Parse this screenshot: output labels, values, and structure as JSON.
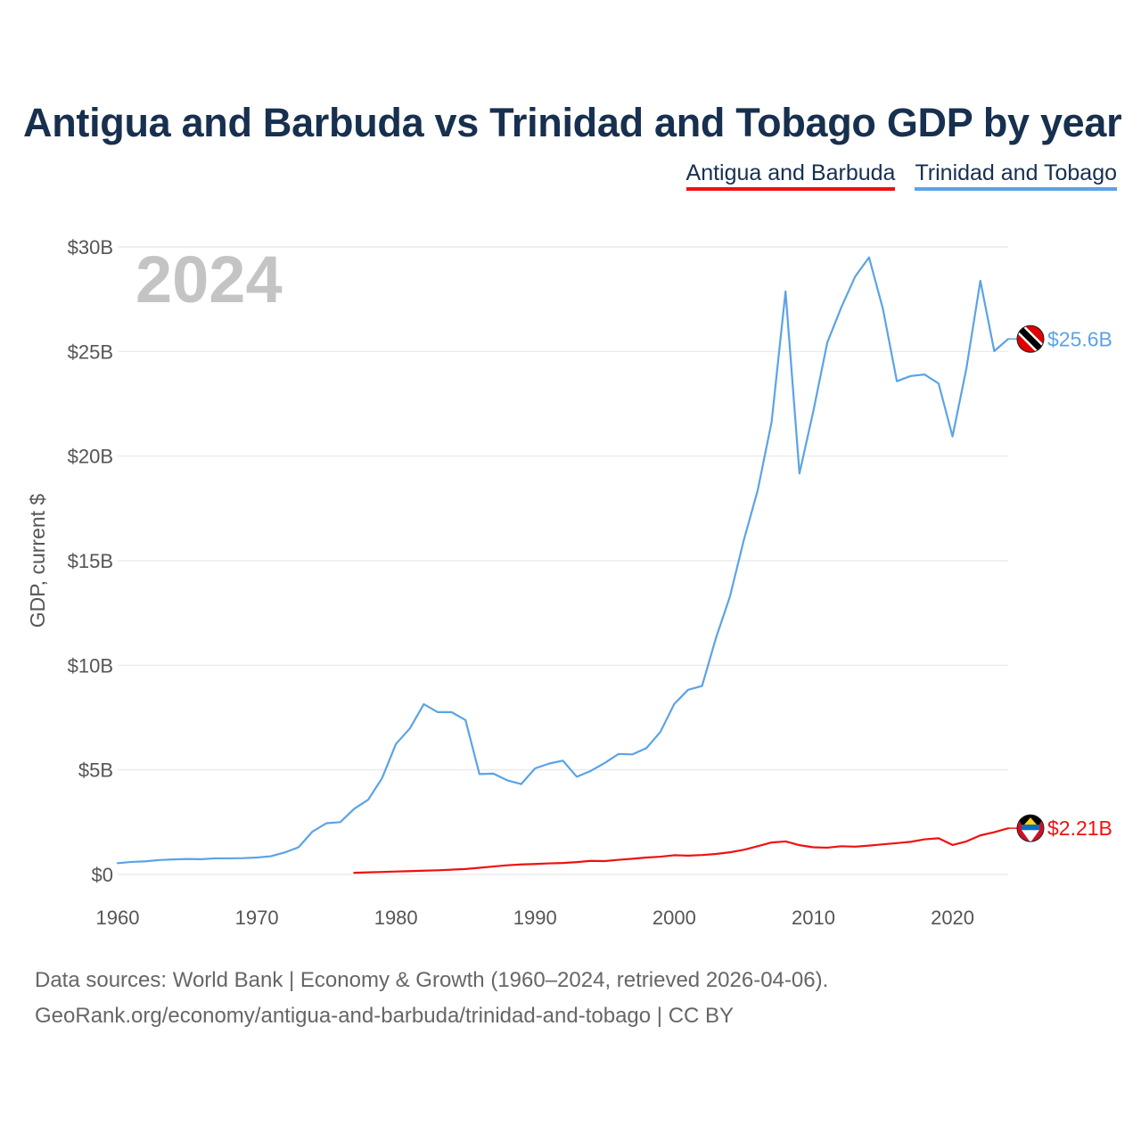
{
  "chart_data": {
    "type": "line",
    "title": "Antigua and Barbuda vs Trinidad and Tobago GDP by year",
    "ylabel": "GDP, current $",
    "xlabel": "",
    "year_label": "2024",
    "xlim": [
      1960,
      2024
    ],
    "ylim": [
      0,
      30
    ],
    "x_ticks": [
      1960,
      1970,
      1980,
      1990,
      2000,
      2010,
      2020
    ],
    "x_tick_labels": [
      "1960",
      "1970",
      "1980",
      "1990",
      "2000",
      "2010",
      "2020"
    ],
    "y_ticks": [
      0,
      5,
      10,
      15,
      20,
      25,
      30
    ],
    "y_tick_labels": [
      "$0",
      "$5B",
      "$10B",
      "$15B",
      "$20B",
      "$25B",
      "$30B"
    ],
    "grid": true,
    "legend": "top-right",
    "series": [
      {
        "name": "Antigua and Barbuda",
        "color": "#ee1111",
        "end_label": "$2.21B",
        "flag": "flag-antigua-and-barbuda-icon",
        "x": [
          1977,
          1978,
          1979,
          1980,
          1981,
          1982,
          1983,
          1984,
          1985,
          1986,
          1987,
          1988,
          1989,
          1990,
          1991,
          1992,
          1993,
          1994,
          1995,
          1996,
          1997,
          1998,
          1999,
          2000,
          2001,
          2002,
          2003,
          2004,
          2005,
          2006,
          2007,
          2008,
          2009,
          2010,
          2011,
          2012,
          2013,
          2014,
          2015,
          2016,
          2017,
          2018,
          2019,
          2020,
          2021,
          2022,
          2023,
          2024
        ],
        "values": [
          0.08,
          0.1,
          0.12,
          0.14,
          0.16,
          0.18,
          0.2,
          0.23,
          0.26,
          0.32,
          0.38,
          0.44,
          0.48,
          0.5,
          0.53,
          0.55,
          0.59,
          0.65,
          0.64,
          0.7,
          0.75,
          0.81,
          0.85,
          0.92,
          0.9,
          0.93,
          0.98,
          1.06,
          1.18,
          1.35,
          1.53,
          1.58,
          1.4,
          1.3,
          1.28,
          1.35,
          1.33,
          1.38,
          1.44,
          1.5,
          1.56,
          1.68,
          1.73,
          1.41,
          1.58,
          1.87,
          2.02,
          2.21
        ]
      },
      {
        "name": "Trinidad and Tobago",
        "color": "#5ba3e6",
        "end_label": "$25.6B",
        "flag": "flag-trinidad-and-tobago-icon",
        "x": [
          1960,
          1961,
          1962,
          1963,
          1964,
          1965,
          1966,
          1967,
          1968,
          1969,
          1970,
          1971,
          1972,
          1973,
          1974,
          1975,
          1976,
          1977,
          1978,
          1979,
          1980,
          1981,
          1982,
          1983,
          1984,
          1985,
          1986,
          1987,
          1988,
          1989,
          1990,
          1991,
          1992,
          1993,
          1994,
          1995,
          1996,
          1997,
          1998,
          1999,
          2000,
          2001,
          2002,
          2003,
          2004,
          2005,
          2006,
          2007,
          2008,
          2009,
          2010,
          2011,
          2012,
          2013,
          2014,
          2015,
          2016,
          2017,
          2018,
          2019,
          2020,
          2021,
          2022,
          2023,
          2024
        ],
        "values": [
          0.54,
          0.6,
          0.63,
          0.69,
          0.72,
          0.74,
          0.73,
          0.77,
          0.77,
          0.78,
          0.81,
          0.87,
          1.05,
          1.3,
          2.05,
          2.45,
          2.5,
          3.14,
          3.57,
          4.6,
          6.24,
          6.98,
          8.14,
          7.76,
          7.76,
          7.38,
          4.8,
          4.82,
          4.5,
          4.32,
          5.07,
          5.3,
          5.44,
          4.67,
          4.95,
          5.33,
          5.76,
          5.74,
          6.04,
          6.81,
          8.15,
          8.83,
          9.01,
          11.31,
          13.28,
          15.98,
          18.37,
          21.64,
          27.87,
          19.17,
          22.16,
          25.43,
          27.1,
          28.58,
          29.5,
          27.03,
          23.58,
          23.83,
          23.9,
          23.47,
          20.94,
          24.2,
          28.38,
          25.02,
          25.6
        ]
      }
    ]
  },
  "source_line": "Data sources: World Bank | Economy & Growth (1960–2024, retrieved 2026-04-06).",
  "credit_line": "GeoRank.org/economy/antigua-and-barbuda/trinidad-and-tobago | CC BY"
}
